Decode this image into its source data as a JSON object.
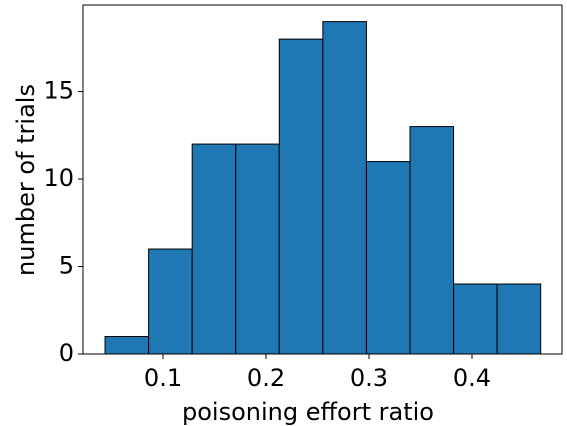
{
  "chart_data": {
    "type": "histogram",
    "x_label": "poisoning effort ratio",
    "y_label": "number of trials",
    "bins": [
      0.0437,
      0.086,
      0.1283,
      0.1706,
      0.2129,
      0.2552,
      0.2975,
      0.3398,
      0.3821,
      0.4244,
      0.4667
    ],
    "values": [
      1,
      6,
      12,
      12,
      18,
      19,
      11,
      13,
      4,
      4
    ],
    "color": "#1f77b4",
    "edgecolor": "#000000",
    "xlim": [
      0.0223,
      0.4874
    ],
    "xticks": [
      0.1,
      0.2,
      0.3,
      0.4
    ],
    "ylim": [
      0,
      19.95
    ],
    "yticks": [
      0,
      5,
      10,
      15
    ]
  }
}
